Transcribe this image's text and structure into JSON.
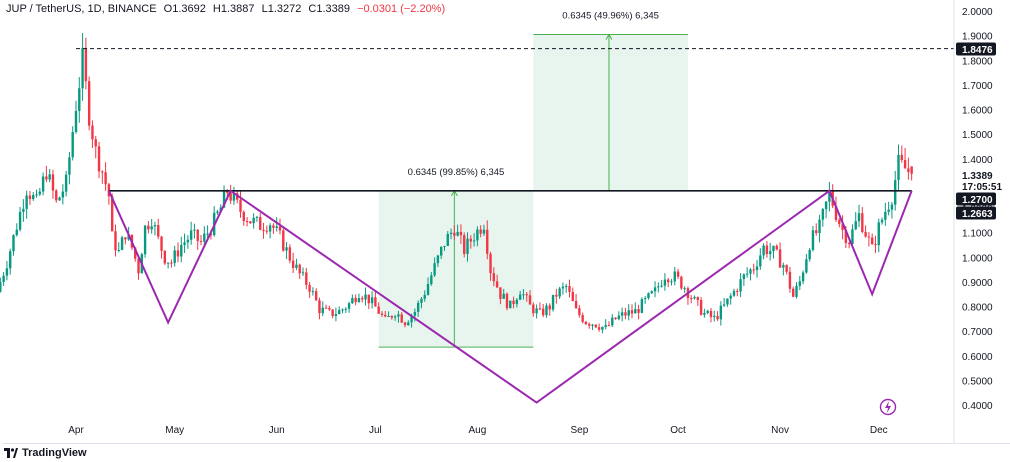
{
  "header": {
    "symbol": "JUP / TetherUS, 1D, BINANCE",
    "open": "O1.3692",
    "high": "H1.3887",
    "low": "L1.3272",
    "close": "C1.3389",
    "change": "−0.0301 (−2.20%)"
  },
  "footer": {
    "logo_text": "TradingView"
  },
  "colors": {
    "up": "#089981",
    "down": "#f23645",
    "pattern": "#9c27b0",
    "neckline": "#131722",
    "measure_fill": "#e8f5ef",
    "measure_line": "#4caf50"
  },
  "chart_data": {
    "type": "candlestick",
    "title": "",
    "xlabel": "",
    "ylabel": "",
    "ylim": [
      0.38,
      2.02
    ],
    "yticks": [
      "0.4000",
      "0.5000",
      "0.6000",
      "0.7000",
      "0.8000",
      "0.9000",
      "1.0000",
      "1.1000",
      "1.2000",
      "1.3000",
      "1.4000",
      "1.5000",
      "1.6000",
      "1.7000",
      "1.8000",
      "1.9000",
      "2.0000"
    ],
    "ytick_values": [
      0.4,
      0.5,
      0.6,
      0.7,
      0.8,
      0.9,
      1.0,
      1.1,
      1.2,
      1.3,
      1.4,
      1.5,
      1.6,
      1.7,
      1.8,
      1.9,
      2.0
    ],
    "xticks": [
      "Apr",
      "May",
      "Jun",
      "Jul",
      "Aug",
      "Sep",
      "Oct",
      "Nov",
      "Dec"
    ],
    "xtick_days": [
      0,
      30,
      61,
      91,
      122,
      153,
      183,
      214,
      244
    ],
    "date_range": [
      "2024-03-05",
      "2024-12-10"
    ],
    "badges": [
      {
        "label": "1.8476",
        "value": 1.8476,
        "style": "dark"
      },
      {
        "label": "1.3389",
        "value": 1.3389,
        "style": "plain"
      },
      {
        "label": "17:05:51",
        "value": 1.316,
        "style": "plain"
      },
      {
        "label": "1.2700",
        "value": 1.27,
        "style": "dark"
      },
      {
        "label": "1.2663",
        "value": 1.2663,
        "style": "dark"
      }
    ],
    "high_line": 1.8476,
    "neckline": 1.27,
    "pattern_points": [
      {
        "day": 10,
        "price": 1.27
      },
      {
        "day": 28,
        "price": 0.735
      },
      {
        "day": 47,
        "price": 1.27
      },
      {
        "day": 140,
        "price": 0.41
      },
      {
        "day": 229,
        "price": 1.27
      },
      {
        "day": 242,
        "price": 0.85
      },
      {
        "day": 254,
        "price": 1.27
      }
    ],
    "measure_boxes": [
      {
        "label": "0.6345 (99.85%) 6,345",
        "day_start": 92,
        "day_end": 139,
        "price_low": 0.635,
        "price_high": 1.27,
        "arrow_day": 115
      },
      {
        "label": "0.6345 (49.96%) 6,345",
        "day_start": 139,
        "day_end": 186,
        "price_low": 1.27,
        "price_high": 1.905,
        "arrow_day": 162
      }
    ],
    "close_path": [
      [
        -27,
        0.77
      ],
      [
        -24,
        0.86
      ],
      [
        -21,
        0.98
      ],
      [
        -18,
        1.13
      ],
      [
        -15,
        1.28
      ],
      [
        -12,
        1.22
      ],
      [
        -9,
        1.35
      ],
      [
        -6,
        1.22
      ],
      [
        -3,
        1.3
      ],
      [
        0,
        1.62
      ],
      [
        2,
        1.8
      ],
      [
        4,
        1.58
      ],
      [
        6,
        1.43
      ],
      [
        8,
        1.35
      ],
      [
        10,
        1.25
      ],
      [
        11,
        1.08
      ],
      [
        13,
        1.02
      ],
      [
        15,
        1.1
      ],
      [
        17,
        1.04
      ],
      [
        19,
        0.95
      ],
      [
        21,
        1.12
      ],
      [
        23,
        1.16
      ],
      [
        25,
        1.07
      ],
      [
        27,
        1.0
      ],
      [
        29,
        0.98
      ],
      [
        32,
        1.05
      ],
      [
        35,
        1.09
      ],
      [
        38,
        1.06
      ],
      [
        41,
        1.12
      ],
      [
        44,
        1.2
      ],
      [
        46,
        1.27
      ],
      [
        48,
        1.23
      ],
      [
        50,
        1.19
      ],
      [
        53,
        1.15
      ],
      [
        56,
        1.13
      ],
      [
        59,
        1.14
      ],
      [
        62,
        1.08
      ],
      [
        65,
        1.0
      ],
      [
        68,
        0.93
      ],
      [
        71,
        0.88
      ],
      [
        74,
        0.79
      ],
      [
        77,
        0.77
      ],
      [
        80,
        0.78
      ],
      [
        83,
        0.81
      ],
      [
        86,
        0.86
      ],
      [
        89,
        0.83
      ],
      [
        92,
        0.78
      ],
      [
        94,
        0.74
      ],
      [
        97,
        0.78
      ],
      [
        100,
        0.74
      ],
      [
        103,
        0.78
      ],
      [
        106,
        0.86
      ],
      [
        109,
        0.96
      ],
      [
        112,
        1.06
      ],
      [
        115,
        1.12
      ],
      [
        118,
        1.03
      ],
      [
        121,
        1.09
      ],
      [
        124,
        1.14
      ],
      [
        126,
        0.95
      ],
      [
        129,
        0.85
      ],
      [
        132,
        0.8
      ],
      [
        135,
        0.87
      ],
      [
        138,
        0.8
      ],
      [
        141,
        0.77
      ],
      [
        144,
        0.8
      ],
      [
        146,
        0.85
      ],
      [
        149,
        0.88
      ],
      [
        152,
        0.78
      ],
      [
        155,
        0.74
      ],
      [
        158,
        0.73
      ],
      [
        161,
        0.71
      ],
      [
        164,
        0.75
      ],
      [
        167,
        0.77
      ],
      [
        170,
        0.78
      ],
      [
        173,
        0.82
      ],
      [
        176,
        0.86
      ],
      [
        179,
        0.93
      ],
      [
        182,
        0.92
      ],
      [
        185,
        0.88
      ],
      [
        188,
        0.82
      ],
      [
        191,
        0.77
      ],
      [
        194,
        0.75
      ],
      [
        197,
        0.8
      ],
      [
        200,
        0.86
      ],
      [
        203,
        0.92
      ],
      [
        206,
        0.96
      ],
      [
        209,
        1.04
      ],
      [
        212,
        1.02
      ],
      [
        215,
        0.97
      ],
      [
        218,
        0.84
      ],
      [
        220,
        0.9
      ],
      [
        223,
        1.06
      ],
      [
        226,
        1.12
      ],
      [
        229,
        1.26
      ],
      [
        231,
        1.18
      ],
      [
        233,
        1.11
      ],
      [
        235,
        1.07
      ],
      [
        238,
        1.17
      ],
      [
        240,
        1.1
      ],
      [
        242,
        1.03
      ],
      [
        244,
        1.12
      ],
      [
        246,
        1.19
      ],
      [
        248,
        1.25
      ],
      [
        250,
        1.38
      ],
      [
        252,
        1.36
      ],
      [
        254,
        1.339
      ]
    ]
  }
}
